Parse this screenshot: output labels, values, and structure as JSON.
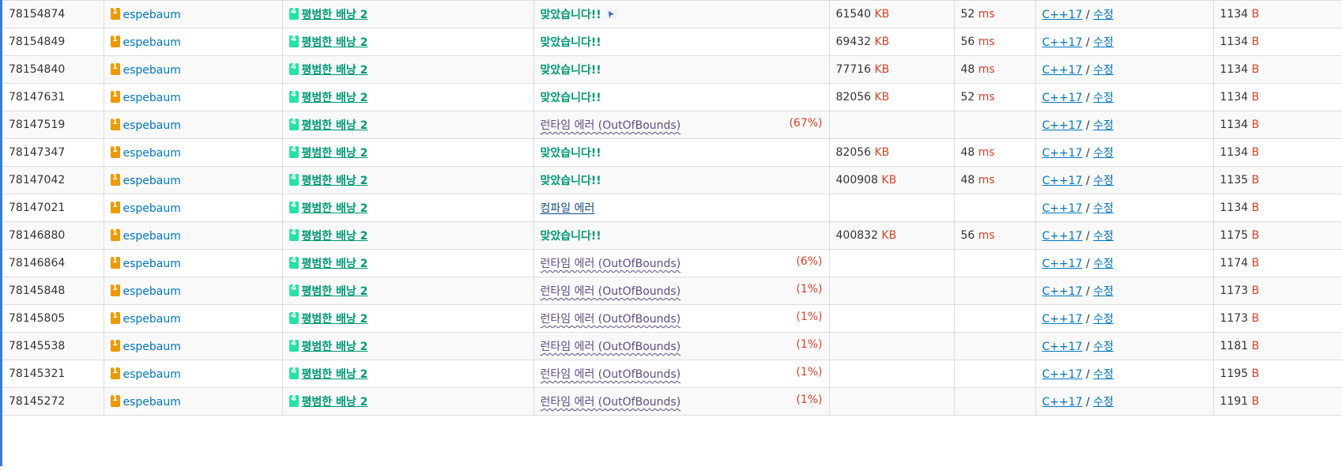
{
  "rows": [
    {
      "id": "78154874",
      "user": "espebaum",
      "problem": "평범한 배낭 2",
      "result": "맞았습니다!!",
      "result_type": "ac",
      "percent": "",
      "memory": "61540",
      "memory_unit": "KB",
      "time": "52",
      "time_unit": "ms",
      "language": "C++17",
      "edit": "수정",
      "length": "1134",
      "length_unit": "B",
      "has_icon": true
    },
    {
      "id": "78154849",
      "user": "espebaum",
      "problem": "평범한 배낭 2",
      "result": "맞았습니다!!",
      "result_type": "ac",
      "percent": "",
      "memory": "69432",
      "memory_unit": "KB",
      "time": "56",
      "time_unit": "ms",
      "language": "C++17",
      "edit": "수정",
      "length": "1134",
      "length_unit": "B"
    },
    {
      "id": "78154840",
      "user": "espebaum",
      "problem": "평범한 배낭 2",
      "result": "맞았습니다!!",
      "result_type": "ac",
      "percent": "",
      "memory": "77716",
      "memory_unit": "KB",
      "time": "48",
      "time_unit": "ms",
      "language": "C++17",
      "edit": "수정",
      "length": "1134",
      "length_unit": "B"
    },
    {
      "id": "78147631",
      "user": "espebaum",
      "problem": "평범한 배낭 2",
      "result": "맞았습니다!!",
      "result_type": "ac",
      "percent": "",
      "memory": "82056",
      "memory_unit": "KB",
      "time": "52",
      "time_unit": "ms",
      "language": "C++17",
      "edit": "수정",
      "length": "1134",
      "length_unit": "B"
    },
    {
      "id": "78147519",
      "user": "espebaum",
      "problem": "평범한 배낭 2",
      "result": "런타임 에러 (OutOfBounds)",
      "result_type": "rte",
      "percent": "(67%)",
      "memory": "",
      "memory_unit": "",
      "time": "",
      "time_unit": "",
      "language": "C++17",
      "edit": "수정",
      "length": "1134",
      "length_unit": "B"
    },
    {
      "id": "78147347",
      "user": "espebaum",
      "problem": "평범한 배낭 2",
      "result": "맞았습니다!!",
      "result_type": "ac",
      "percent": "",
      "memory": "82056",
      "memory_unit": "KB",
      "time": "48",
      "time_unit": "ms",
      "language": "C++17",
      "edit": "수정",
      "length": "1134",
      "length_unit": "B"
    },
    {
      "id": "78147042",
      "user": "espebaum",
      "problem": "평범한 배낭 2",
      "result": "맞았습니다!!",
      "result_type": "ac",
      "percent": "",
      "memory": "400908",
      "memory_unit": "KB",
      "time": "48",
      "time_unit": "ms",
      "language": "C++17",
      "edit": "수정",
      "length": "1135",
      "length_unit": "B"
    },
    {
      "id": "78147021",
      "user": "espebaum",
      "problem": "평범한 배낭 2",
      "result": "컴파일 에러",
      "result_type": "ce",
      "percent": "",
      "memory": "",
      "memory_unit": "",
      "time": "",
      "time_unit": "",
      "language": "C++17",
      "edit": "수정",
      "length": "1134",
      "length_unit": "B"
    },
    {
      "id": "78146880",
      "user": "espebaum",
      "problem": "평범한 배낭 2",
      "result": "맞았습니다!!",
      "result_type": "ac",
      "percent": "",
      "memory": "400832",
      "memory_unit": "KB",
      "time": "56",
      "time_unit": "ms",
      "language": "C++17",
      "edit": "수정",
      "length": "1175",
      "length_unit": "B"
    },
    {
      "id": "78146864",
      "user": "espebaum",
      "problem": "평범한 배낭 2",
      "result": "런타임 에러 (OutOfBounds)",
      "result_type": "rte",
      "percent": "(6%)",
      "memory": "",
      "memory_unit": "",
      "time": "",
      "time_unit": "",
      "language": "C++17",
      "edit": "수정",
      "length": "1174",
      "length_unit": "B"
    },
    {
      "id": "78145848",
      "user": "espebaum",
      "problem": "평범한 배낭 2",
      "result": "런타임 에러 (OutOfBounds)",
      "result_type": "rte",
      "percent": "(1%)",
      "memory": "",
      "memory_unit": "",
      "time": "",
      "time_unit": "",
      "language": "C++17",
      "edit": "수정",
      "length": "1173",
      "length_unit": "B"
    },
    {
      "id": "78145805",
      "user": "espebaum",
      "problem": "평범한 배낭 2",
      "result": "런타임 에러 (OutOfBounds)",
      "result_type": "rte",
      "percent": "(1%)",
      "memory": "",
      "memory_unit": "",
      "time": "",
      "time_unit": "",
      "language": "C++17",
      "edit": "수정",
      "length": "1173",
      "length_unit": "B"
    },
    {
      "id": "78145538",
      "user": "espebaum",
      "problem": "평범한 배낭 2",
      "result": "런타임 에러 (OutOfBounds)",
      "result_type": "rte",
      "percent": "(1%)",
      "memory": "",
      "memory_unit": "",
      "time": "",
      "time_unit": "",
      "language": "C++17",
      "edit": "수정",
      "length": "1181",
      "length_unit": "B"
    },
    {
      "id": "78145321",
      "user": "espebaum",
      "problem": "평범한 배낭 2",
      "result": "런타임 에러 (OutOfBounds)",
      "result_type": "rte",
      "percent": "(1%)",
      "memory": "",
      "memory_unit": "",
      "time": "",
      "time_unit": "",
      "language": "C++17",
      "edit": "수정",
      "length": "1195",
      "length_unit": "B"
    },
    {
      "id": "78145272",
      "user": "espebaum",
      "problem": "평범한 배낭 2",
      "result": "런타임 에러 (OutOfBounds)",
      "result_type": "rte",
      "percent": "(1%)",
      "memory": "",
      "memory_unit": "",
      "time": "",
      "time_unit": "",
      "language": "C++17",
      "edit": "수정",
      "length": "1191",
      "length_unit": "B"
    }
  ],
  "separator": "/",
  "icons": {
    "user_tier": "bronze-tier-1-icon",
    "problem_tier": "tier-4-icon",
    "result_extra": "pointer-badge-icon"
  },
  "colors": {
    "accepted": "#009874",
    "runtime_error": "#5f4b8b",
    "compile_error": "#0f4c81",
    "unit": "#dd4124",
    "link": "#0076c0",
    "left_border": "#3a7bd5"
  }
}
